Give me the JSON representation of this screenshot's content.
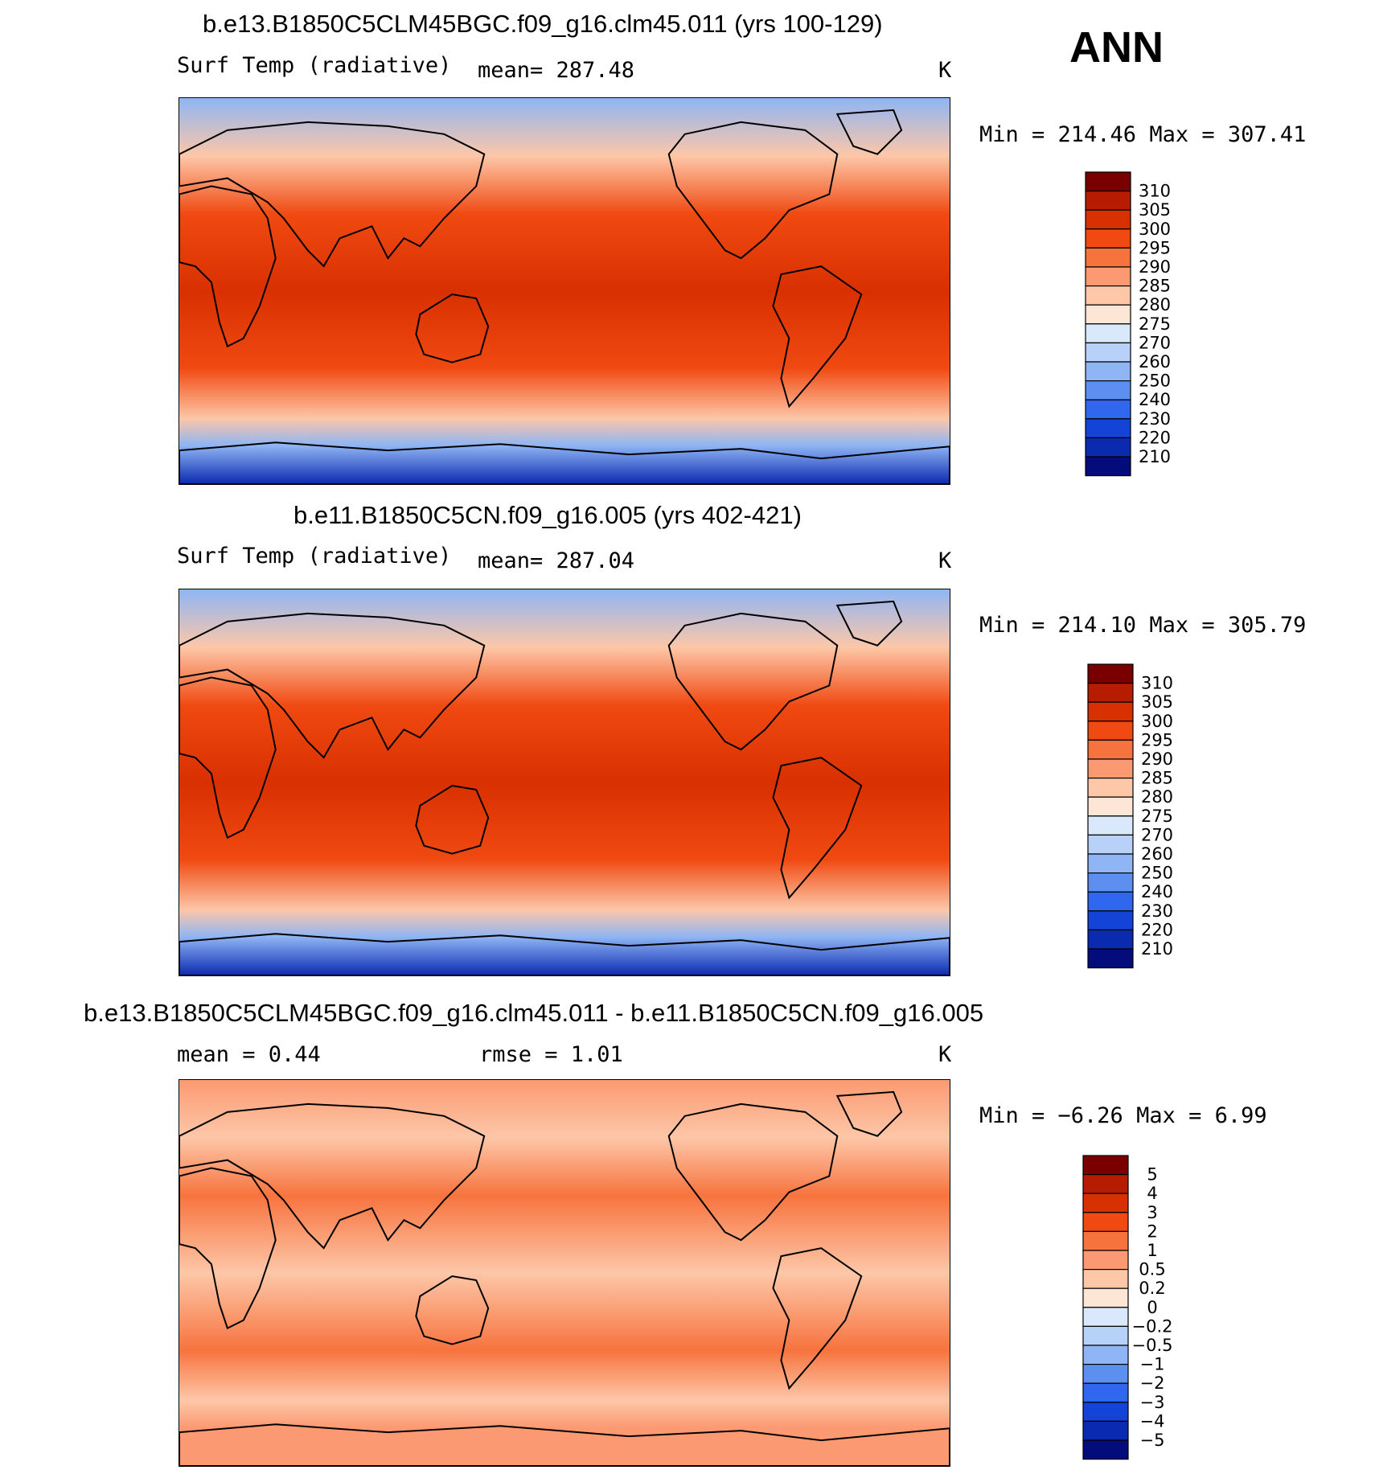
{
  "season": "ANN",
  "panels": [
    {
      "title": "b.e13.B1850C5CLM45BGC.f09_g16.clm45.011 (yrs 100-129)",
      "variable": "Surf Temp (radiative)",
      "stat": "mean=  287.48",
      "units": "K",
      "minmax": "Min  =  214.46  Max  =  307.41",
      "colorbar": {
        "labels": [
          "310",
          "305",
          "300",
          "295",
          "290",
          "285",
          "280",
          "275",
          "270",
          "260",
          "250",
          "240",
          "230",
          "220",
          "210"
        ],
        "colors": [
          "#7a0000",
          "#b51c00",
          "#d83000",
          "#f04a12",
          "#f7733e",
          "#fb9a72",
          "#fdc7a8",
          "#fde6d6",
          "#d9e8fb",
          "#b7d1f8",
          "#8fb5f4",
          "#5d8ff0",
          "#2f67ef",
          "#1443d8",
          "#0a2ab0",
          "#030c7a"
        ]
      },
      "map_palette": {
        "pole_s": "#0a2ab0",
        "pole_n": "#8fb5f4",
        "mid": "#fdc7a8",
        "tropic": "#d83000",
        "warm": "#f04a12"
      }
    },
    {
      "title": "b.e11.B1850C5CN.f09_g16.005 (yrs 402-421)",
      "variable": "Surf Temp (radiative)",
      "stat": "mean=  287.04",
      "units": "K",
      "minmax": "Min  =  214.10  Max  =  305.79",
      "colorbar": {
        "labels": [
          "310",
          "305",
          "300",
          "295",
          "290",
          "285",
          "280",
          "275",
          "270",
          "260",
          "250",
          "240",
          "230",
          "220",
          "210"
        ],
        "colors": [
          "#7a0000",
          "#b51c00",
          "#d83000",
          "#f04a12",
          "#f7733e",
          "#fb9a72",
          "#fdc7a8",
          "#fde6d6",
          "#d9e8fb",
          "#b7d1f8",
          "#8fb5f4",
          "#5d8ff0",
          "#2f67ef",
          "#1443d8",
          "#0a2ab0",
          "#030c7a"
        ]
      },
      "map_palette": {
        "pole_s": "#0a2ab0",
        "pole_n": "#8fb5f4",
        "mid": "#fdc7a8",
        "tropic": "#d83000",
        "warm": "#f04a12"
      }
    },
    {
      "title": "b.e13.B1850C5CLM45BGC.f09_g16.clm45.011 - b.e11.B1850C5CN.f09_g16.005",
      "variable": "mean =    0.44",
      "stat": "rmse =    1.01",
      "units": "K",
      "minmax": "Min  =   −6.26  Max  =    6.99",
      "colorbar": {
        "labels": [
          "5",
          "4",
          "3",
          "2",
          "1",
          "0.5",
          "0.2",
          "0",
          "−0.2",
          "−0.5",
          "−1",
          "−2",
          "−3",
          "−4",
          "−5"
        ],
        "colors": [
          "#7a0000",
          "#b51c00",
          "#d83000",
          "#f04a12",
          "#f7733e",
          "#fb9a72",
          "#fdc7a8",
          "#fde6d6",
          "#d9e8fb",
          "#b7d1f8",
          "#8fb5f4",
          "#5d8ff0",
          "#2f67ef",
          "#1443d8",
          "#0a2ab0",
          "#030c7a"
        ]
      },
      "map_palette": {
        "pole_s": "#fb9a72",
        "pole_n": "#fb9a72",
        "mid": "#fdc7a8",
        "tropic": "#fdc7a8",
        "warm": "#f7733e"
      }
    }
  ]
}
